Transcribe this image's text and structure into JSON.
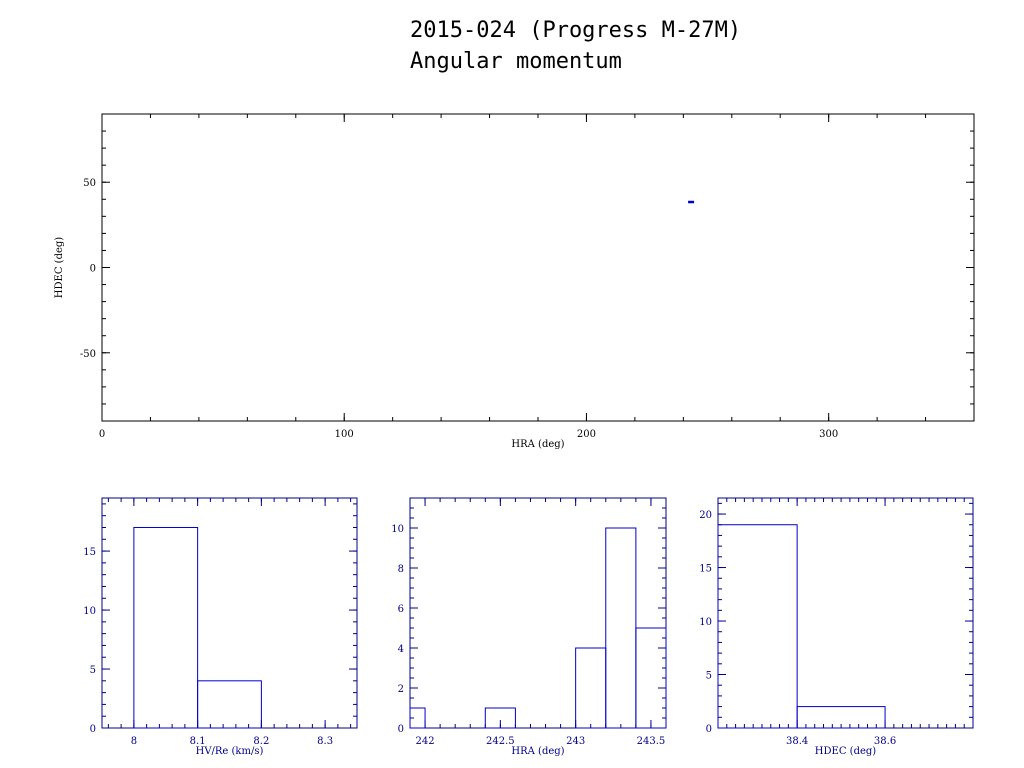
{
  "title": {
    "line1": "2015-024 (Progress M-27M)",
    "line2": "Angular momentum"
  },
  "colors": {
    "main_axes": "#000000",
    "hist_axes": "#00008b",
    "data": "#0000cd",
    "background": "#ffffff"
  },
  "chart_data": [
    {
      "type": "scatter",
      "xlabel": "HRA (deg)",
      "ylabel": "HDEC (deg)",
      "xlim": [
        0,
        360
      ],
      "ylim": [
        -90,
        90
      ],
      "xticks": [
        0,
        100,
        200,
        300
      ],
      "yticks": [
        -50,
        0,
        50
      ],
      "xminor": 20,
      "yminor": 10,
      "points": [
        {
          "x": 243.2,
          "y": 38.4
        }
      ]
    },
    {
      "type": "bar",
      "subtype": "histogram",
      "xlabel": "HV/Re (km/s)",
      "ylabel": "",
      "xlim": [
        7.95,
        8.35
      ],
      "ylim": [
        0,
        19.5
      ],
      "xticks": [
        8,
        8.1,
        8.2,
        8.3
      ],
      "xtick_labels": [
        "8",
        "8.1",
        "8.2",
        "8.3"
      ],
      "yticks": [
        0,
        5,
        10,
        15
      ],
      "xminor": 0.02,
      "yminor": 1,
      "bins": [
        {
          "x0": 8.0,
          "x1": 8.1,
          "count": 17
        },
        {
          "x0": 8.1,
          "x1": 8.2,
          "count": 4
        }
      ]
    },
    {
      "type": "bar",
      "subtype": "histogram",
      "xlabel": "HRA (deg)",
      "ylabel": "",
      "xlim": [
        241.9,
        243.6
      ],
      "ylim": [
        0,
        11.5
      ],
      "xticks": [
        242,
        242.5,
        243,
        243.5
      ],
      "xtick_labels": [
        "242",
        "242.5",
        "243",
        "243.5"
      ],
      "yticks": [
        0,
        2,
        4,
        6,
        8,
        10
      ],
      "xminor": 0.1,
      "yminor": 0.5,
      "bins": [
        {
          "x0": 241.9,
          "x1": 242.0,
          "count": 1
        },
        {
          "x0": 242.4,
          "x1": 242.6,
          "count": 1
        },
        {
          "x0": 243.0,
          "x1": 243.2,
          "count": 4
        },
        {
          "x0": 243.2,
          "x1": 243.4,
          "count": 10
        },
        {
          "x0": 243.4,
          "x1": 243.6,
          "count": 5
        }
      ]
    },
    {
      "type": "bar",
      "subtype": "histogram",
      "xlabel": "HDEC (deg)",
      "ylabel": "",
      "xlim": [
        38.22,
        38.8
      ],
      "ylim": [
        0,
        21.5
      ],
      "xticks": [
        38.4,
        38.6
      ],
      "xtick_labels": [
        "38.4",
        "38.6"
      ],
      "yticks": [
        0,
        5,
        10,
        15,
        20
      ],
      "xminor": 0.02,
      "yminor": 1,
      "bins": [
        {
          "x0": 38.22,
          "x1": 38.4,
          "count": 19
        },
        {
          "x0": 38.4,
          "x1": 38.6,
          "count": 2
        }
      ]
    }
  ]
}
